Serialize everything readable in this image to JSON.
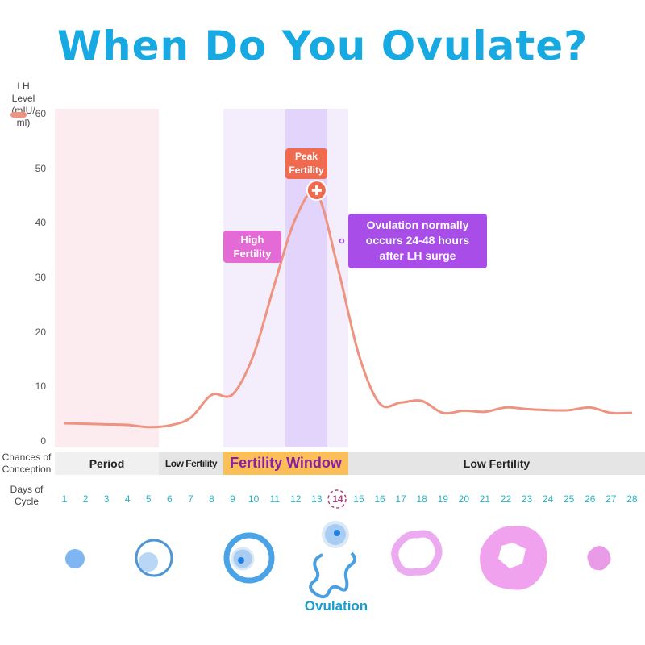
{
  "title": "When Do You Ovulate?",
  "colors": {
    "title": "#17a9e1",
    "line": "#ee9380",
    "period_band": "#fdecef",
    "high_band": "#f4eefc",
    "peak_band": "#e3d4fb",
    "fertility_window": "#fbbf5a",
    "fertility_window_text": "#8b1fa8",
    "day_numbers": "#29b3c4"
  },
  "chart_data": {
    "type": "line",
    "ylabel": "LH Level (mIU/ ml)",
    "ylim": [
      0,
      60
    ],
    "yticks": [
      0,
      10,
      20,
      30,
      40,
      50,
      60
    ],
    "xlabel": "Days of Cycle",
    "x": [
      1,
      2,
      3,
      4,
      5,
      6,
      7,
      8,
      9,
      10,
      11,
      12,
      13,
      14,
      15,
      16,
      17,
      18,
      19,
      20,
      21,
      22,
      23,
      24,
      25,
      26,
      27,
      28
    ],
    "series": [
      {
        "values": [
          3.4,
          3.3,
          3.2,
          3.1,
          2.7,
          3.0,
          4.4,
          8.6,
          8.7,
          16,
          29,
          41,
          45.5,
          32,
          16,
          7,
          7.2,
          7.5,
          5.3,
          5.7,
          5.5,
          6.3,
          6.0,
          5.8,
          5.8,
          6.3,
          5.3,
          5.3
        ]
      }
    ],
    "highlighted_day": 14,
    "annotations": {
      "peak": "Peak Fertility",
      "high": "High Fertility",
      "ovulation_note": "Ovulation normally occurs 24-48 hours after LH surge"
    }
  },
  "annotations_lines": {
    "peak": [
      "Peak",
      "Fertility"
    ],
    "high": [
      "High",
      "Fertility"
    ],
    "ovulation": [
      "Ovulation normally",
      "occurs 24-48 hours",
      "after LH surge"
    ]
  },
  "ylabel_lines": [
    "LH Level",
    "(mIU/ ml)"
  ],
  "conception": {
    "label_lines": [
      "Chances of",
      "Conception"
    ],
    "segments": [
      "Period",
      "Low Fertility",
      "Fertility Window",
      "Low Fertility"
    ]
  },
  "days_label_lines": [
    "Days of",
    "Cycle"
  ],
  "ovulation_label": "Ovulation"
}
